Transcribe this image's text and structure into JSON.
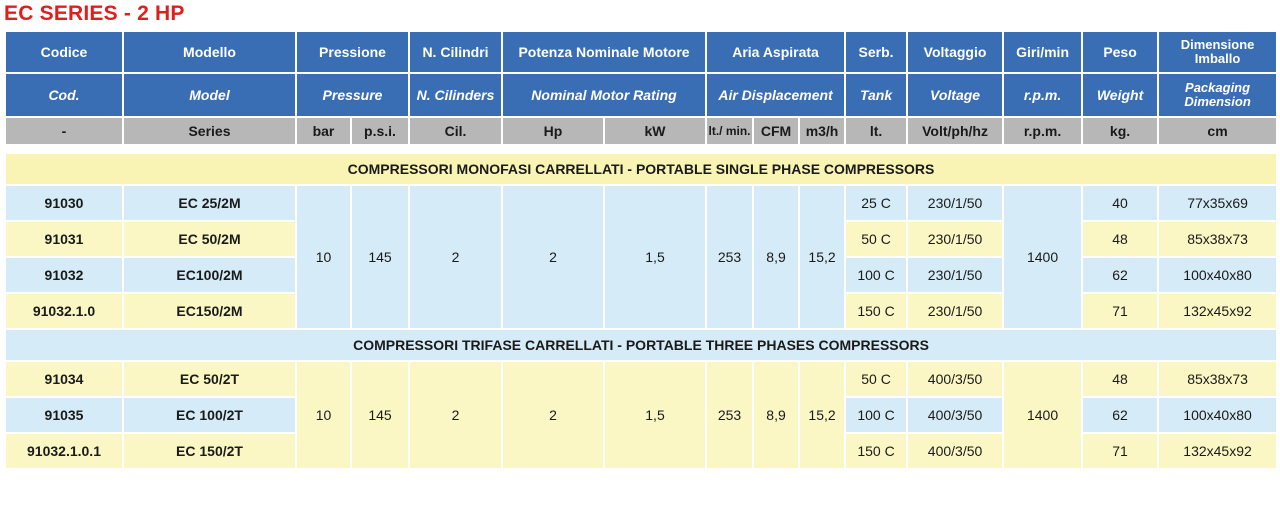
{
  "title": "EC SERIES - 2 HP",
  "header": {
    "row1": [
      "Codice",
      "Modello",
      "Pressione",
      "N. Cilindri",
      "Potenza Nominale Motore",
      "Aria Aspirata",
      "Serb.",
      "Voltaggio",
      "Giri/min",
      "Peso",
      "Dimensione Imballo"
    ],
    "row2": [
      "Cod.",
      "Model",
      "Pressure",
      "N. Cilinders",
      "Nominal Motor Rating",
      "Air Displacement",
      "Tank",
      "Voltage",
      "r.p.m.",
      "Weight",
      "Packaging Dimension"
    ],
    "row3": [
      "-",
      "Series",
      "bar",
      "p.s.i.",
      "Cil.",
      "Hp",
      "kW",
      "lt./ min.",
      "CFM",
      "m3/h",
      "lt.",
      "Volt/ph/hz",
      "r.p.m.",
      "kg.",
      "cm"
    ]
  },
  "sections": [
    {
      "title": "COMPRESSORI MONOFASI CARRELLATI - PORTABLE SINGLE PHASE COMPRESSORS",
      "shared": {
        "bar": "10",
        "psi": "145",
        "cil": "2",
        "hp": "2",
        "kw": "1,5",
        "lt_min": "253",
        "cfm": "8,9",
        "m3h": "15,2",
        "rpm": "1400"
      },
      "rows": [
        {
          "code": "91030",
          "model": "EC 25/2M",
          "tank": "25 C",
          "volt": "230/1/50",
          "weight": "40",
          "dim": "77x35x69"
        },
        {
          "code": "91031",
          "model": "EC 50/2M",
          "tank": "50 C",
          "volt": "230/1/50",
          "weight": "48",
          "dim": "85x38x73"
        },
        {
          "code": "91032",
          "model": "EC100/2M",
          "tank": "100 C",
          "volt": "230/1/50",
          "weight": "62",
          "dim": "100x40x80"
        },
        {
          "code": "91032.1.0",
          "model": "EC150/2M",
          "tank": "150 C",
          "volt": "230/1/50",
          "weight": "71",
          "dim": "132x45x92"
        }
      ]
    },
    {
      "title": "COMPRESSORI TRIFASE CARRELLATI - PORTABLE THREE PHASES COMPRESSORS",
      "shared": {
        "bar": "10",
        "psi": "145",
        "cil": "2",
        "hp": "2",
        "kw": "1,5",
        "lt_min": "253",
        "cfm": "8,9",
        "m3h": "15,2",
        "rpm": "1400"
      },
      "rows": [
        {
          "code": "91034",
          "model": "EC 50/2T",
          "tank": "50 C",
          "volt": "400/3/50",
          "weight": "48",
          "dim": "85x38x73"
        },
        {
          "code": "91035",
          "model": "EC 100/2T",
          "tank": "100 C",
          "volt": "400/3/50",
          "weight": "62",
          "dim": "100x40x80"
        },
        {
          "code": "91032.1.0.1",
          "model": "EC 150/2T",
          "tank": "150 C",
          "volt": "400/3/50",
          "weight": "71",
          "dim": "132x45x92"
        }
      ]
    }
  ],
  "colors": {
    "title": "#e01e1e",
    "header": "#3a6eb4",
    "subheader": "#b7b7b7",
    "blue_row": "#d5ebf7",
    "yellow_row": "#fbf7c4",
    "section": "#f9f4b4"
  }
}
